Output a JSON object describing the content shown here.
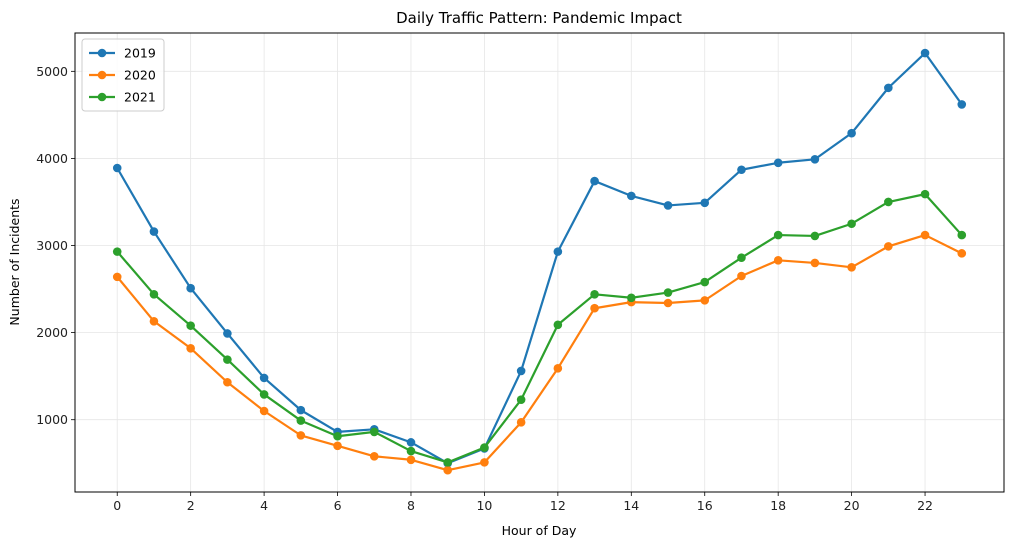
{
  "chart_data": {
    "type": "line",
    "title": "Daily Traffic Pattern: Pandemic Impact",
    "xlabel": "Hour of Day",
    "ylabel": "Number of Incidents",
    "x": [
      0,
      1,
      2,
      3,
      4,
      5,
      6,
      7,
      8,
      9,
      10,
      11,
      12,
      13,
      14,
      15,
      16,
      17,
      18,
      19,
      20,
      21,
      22,
      23
    ],
    "xticks": [
      0,
      2,
      4,
      6,
      8,
      10,
      12,
      14,
      16,
      18,
      20,
      22
    ],
    "yticks": [
      1000,
      2000,
      3000,
      4000,
      5000
    ],
    "xlim": [
      -1.15,
      24.15
    ],
    "ylim": [
      170,
      5440
    ],
    "grid": true,
    "legend_position": "top-left",
    "series": [
      {
        "name": "2019",
        "color": "#1f77b4",
        "values": [
          3890,
          3160,
          2510,
          1990,
          1480,
          1110,
          860,
          890,
          740,
          500,
          670,
          1560,
          2930,
          3740,
          3570,
          3460,
          3490,
          3870,
          3950,
          3990,
          4290,
          4810,
          5210,
          4620
        ]
      },
      {
        "name": "2020",
        "color": "#ff7f0e",
        "values": [
          2640,
          2130,
          1820,
          1430,
          1100,
          820,
          700,
          580,
          540,
          420,
          510,
          970,
          1590,
          2280,
          2350,
          2340,
          2370,
          2650,
          2830,
          2800,
          2750,
          2990,
          3120,
          2910
        ]
      },
      {
        "name": "2021",
        "color": "#2ca02c",
        "values": [
          2930,
          2440,
          2080,
          1690,
          1290,
          990,
          810,
          860,
          640,
          510,
          680,
          1230,
          2090,
          2440,
          2400,
          2460,
          2580,
          2860,
          3120,
          3110,
          3250,
          3500,
          3590,
          3120
        ]
      }
    ]
  }
}
